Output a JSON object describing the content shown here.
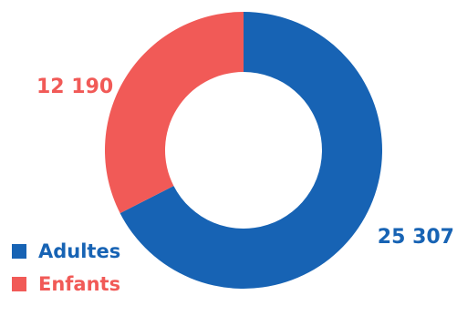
{
  "chart_data": {
    "type": "pie",
    "variant": "donut",
    "series": [
      {
        "name": "Adultes",
        "value": 25307,
        "label": "25 307",
        "color": "#1763b4"
      },
      {
        "name": "Enfants",
        "value": 12190,
        "label": "12 190",
        "color": "#f15a57"
      }
    ],
    "legend": {
      "position": "bottom-left",
      "items": [
        "Adultes",
        "Enfants"
      ]
    }
  }
}
